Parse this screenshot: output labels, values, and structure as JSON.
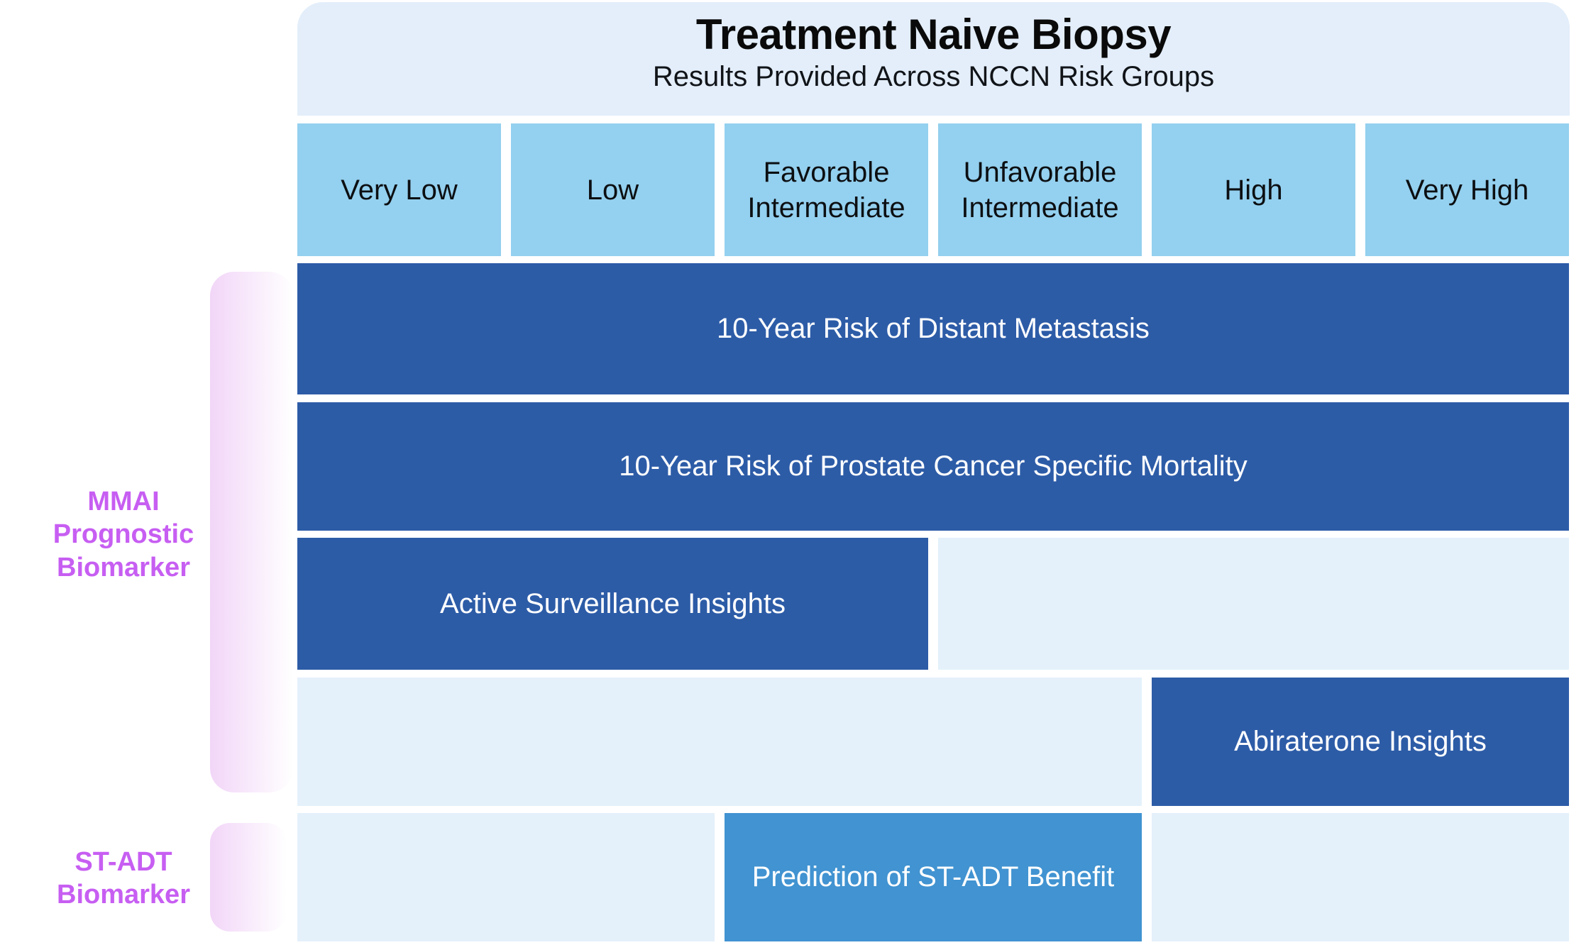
{
  "colors": {
    "dark_blue": "#2d5ca7",
    "medium_blue": "#4193d1",
    "column_blue": "#94d0ef",
    "light_cell": "#e4f1fb",
    "header_band": "#e3eefa",
    "accent_purple": "#c75ef2",
    "pink_bar": "#f2d6f8"
  },
  "header": {
    "title": "Treatment Naive Biopsy",
    "subtitle": "Results Provided Across NCCN Risk Groups"
  },
  "columns": [
    {
      "label": "Very Low"
    },
    {
      "label": "Low"
    },
    {
      "label": "Favorable\nIntermediate"
    },
    {
      "label": "Unfavorable\nIntermediate"
    },
    {
      "label": "High"
    },
    {
      "label": "Very High"
    }
  ],
  "side_labels": {
    "mmai": "MMAI\nPrognostic\nBiomarker",
    "stadt": "ST-ADT\nBiomarker"
  },
  "rows": [
    {
      "label": "10-Year Risk of Distant Metastasis",
      "biomarker": "MMAI Prognostic Biomarker",
      "applies_to": [
        "Very Low",
        "Low",
        "Favorable Intermediate",
        "Unfavorable Intermediate",
        "High",
        "Very High"
      ]
    },
    {
      "label": "10-Year Risk of Prostate Cancer Specific Mortality",
      "biomarker": "MMAI Prognostic Biomarker",
      "applies_to": [
        "Very Low",
        "Low",
        "Favorable Intermediate",
        "Unfavorable Intermediate",
        "High",
        "Very High"
      ]
    },
    {
      "label": "Active Surveillance Insights",
      "biomarker": "MMAI Prognostic Biomarker",
      "applies_to": [
        "Very Low",
        "Low",
        "Favorable Intermediate"
      ]
    },
    {
      "label": "Abiraterone Insights",
      "biomarker": "MMAI Prognostic Biomarker",
      "applies_to": [
        "High",
        "Very High"
      ]
    },
    {
      "label": "Prediction of ST-ADT Benefit",
      "biomarker": "ST-ADT Biomarker",
      "applies_to": [
        "Favorable Intermediate",
        "Unfavorable Intermediate"
      ]
    }
  ]
}
